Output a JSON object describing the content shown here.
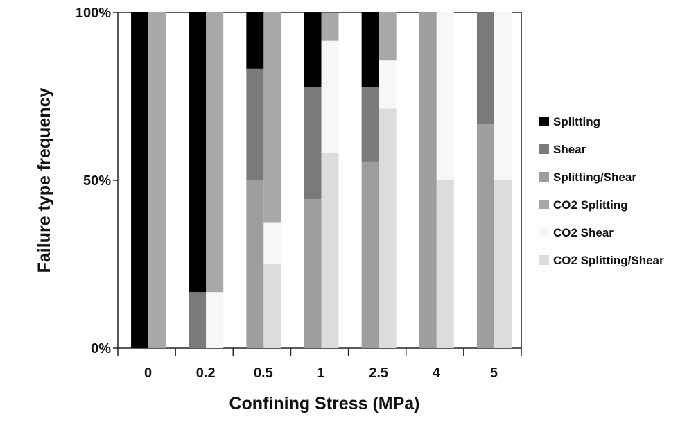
{
  "chart_data": {
    "type": "bar",
    "stacked": true,
    "grouped": true,
    "xlabel": "Confining Stress (MPa)",
    "ylabel": "Failure type frequency",
    "ylim": [
      0,
      100
    ],
    "yticks": [
      "0%",
      "50%",
      "100%"
    ],
    "categories": [
      "0",
      "0.2",
      "0.5",
      "1",
      "2.5",
      "4",
      "5"
    ],
    "legend_position": "right",
    "groups": [
      {
        "name": "",
        "stack": [
          {
            "series": "Splitting",
            "color": "#000000",
            "values": [
              100,
              83.3,
              16.7,
              22.2,
              22.2,
              0,
              0
            ]
          },
          {
            "series": "Shear",
            "color": "#7a7a7a",
            "values": [
              0,
              16.7,
              33.3,
              33.3,
              22.2,
              0,
              33.3
            ]
          },
          {
            "series": "Splitting/Shear",
            "color": "#9e9e9e",
            "values": [
              0,
              0,
              50,
              44.4,
              55.6,
              100,
              66.7
            ]
          }
        ]
      },
      {
        "name": "",
        "stack": [
          {
            "series": "CO2 Splitting",
            "color": "#a8a8a8",
            "values": [
              100,
              83.3,
              62.5,
              8.3,
              14.3,
              0,
              0
            ]
          },
          {
            "series": "CO2 Shear",
            "color": "#f7f7f7",
            "values": [
              0,
              16.7,
              12.5,
              33.3,
              14.3,
              50,
              50
            ]
          },
          {
            "series": "CO2 Splitting/Shear",
            "color": "#dcdcdc",
            "values": [
              0,
              0,
              25,
              58.3,
              71.4,
              50,
              50
            ]
          }
        ]
      }
    ],
    "legend": [
      {
        "label": "Splitting",
        "color": "#000000"
      },
      {
        "label": "Shear",
        "color": "#7a7a7a"
      },
      {
        "label": "Splitting/Shear",
        "color": "#9e9e9e"
      },
      {
        "label": "CO2 Splitting",
        "color": "#a8a8a8"
      },
      {
        "label": "CO2 Shear",
        "color": "#f7f7f7"
      },
      {
        "label": "CO2 Splitting/Shear",
        "color": "#dcdcdc"
      }
    ]
  }
}
